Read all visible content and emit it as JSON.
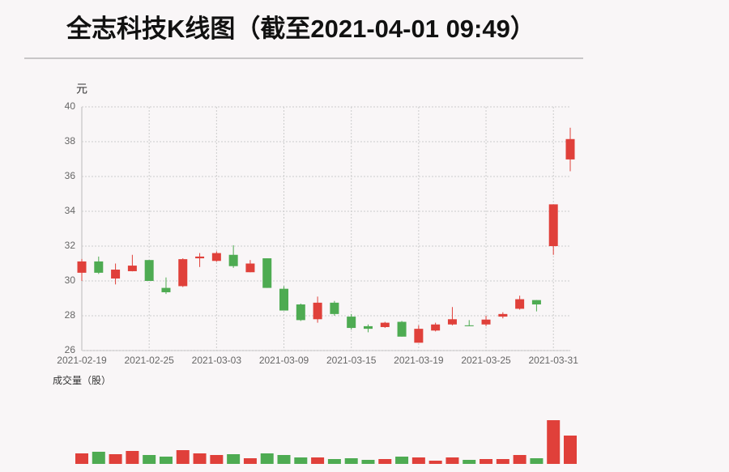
{
  "chart_data": {
    "type": "candlestick",
    "title": "全志科技K线图（截至2021-04-01 09:49）",
    "y_label": "元",
    "volume_label": "成交量（股）",
    "categories": [
      "2021-02-19",
      null,
      null,
      null,
      "2021-02-25",
      null,
      null,
      null,
      "2021-03-03",
      null,
      null,
      null,
      "2021-03-09",
      null,
      null,
      null,
      "2021-03-15",
      null,
      null,
      null,
      "2021-03-19",
      null,
      null,
      null,
      "2021-03-25",
      null,
      null,
      null,
      "2021-03-31",
      null
    ],
    "open": [
      30.47,
      31.12,
      30.14,
      30.56,
      31.2,
      29.6,
      29.7,
      31.3,
      31.15,
      31.5,
      30.5,
      31.3,
      29.55,
      28.65,
      27.8,
      28.75,
      27.95,
      27.4,
      27.35,
      27.65,
      26.45,
      27.15,
      27.5,
      27.45,
      27.5,
      27.95,
      28.4,
      28.9,
      32.0,
      36.98
    ],
    "high": [
      31.26,
      31.4,
      31.0,
      31.5,
      31.2,
      30.2,
      31.3,
      31.6,
      31.7,
      32.05,
      31.2,
      31.3,
      29.7,
      28.7,
      29.1,
      28.85,
      28.1,
      27.5,
      27.65,
      27.7,
      27.45,
      27.6,
      28.5,
      27.75,
      28.0,
      28.2,
      29.15,
      28.9,
      34.4,
      38.8
    ],
    "low": [
      30.0,
      30.4,
      29.8,
      30.55,
      30.0,
      29.25,
      29.65,
      30.8,
      31.1,
      30.75,
      30.5,
      29.6,
      28.3,
      27.7,
      27.6,
      28.0,
      27.2,
      27.05,
      27.3,
      26.8,
      26.45,
      27.1,
      27.45,
      27.4,
      27.4,
      27.85,
      28.35,
      28.25,
      31.5,
      36.3
    ],
    "close": [
      31.12,
      30.47,
      30.65,
      30.88,
      30.0,
      29.35,
      31.25,
      31.4,
      31.6,
      30.85,
      31.0,
      29.6,
      28.3,
      27.75,
      28.75,
      28.1,
      27.3,
      27.25,
      27.6,
      26.8,
      27.25,
      27.5,
      27.8,
      27.4,
      27.78,
      28.1,
      28.95,
      28.65,
      34.4,
      38.15
    ],
    "volume": [
      13,
      15,
      12,
      16,
      11,
      9,
      17,
      13,
      11,
      12,
      7,
      13,
      11,
      8,
      8,
      6,
      7,
      5,
      6,
      9,
      8,
      4,
      8,
      5,
      6,
      6,
      11,
      7,
      54,
      35
    ],
    "up_color": "#e0403a",
    "down_color": "#4eab52",
    "ylim": [
      26,
      40
    ],
    "yticks": [
      26,
      28,
      30,
      32,
      34,
      36,
      38,
      40
    ],
    "grid": true
  }
}
